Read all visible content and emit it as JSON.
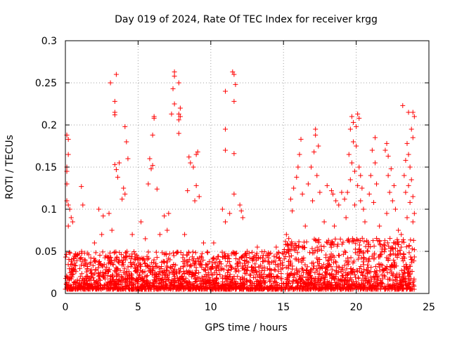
{
  "chart_data": {
    "type": "scatter",
    "title": "Day 019 of 2024, Rate Of TEC Index for receiver krgg",
    "xlabel": "GPS time / hours",
    "ylabel": "ROTI / TECUs",
    "xlim": [
      0,
      25
    ],
    "ylim": [
      0,
      0.3
    ],
    "x_ticks": [
      0,
      5,
      10,
      15,
      20,
      25
    ],
    "x_tick_labels": [
      "0",
      "5",
      "10",
      "15",
      "20",
      "25"
    ],
    "y_ticks": [
      0,
      0.05,
      0.1,
      0.15,
      0.2,
      0.25,
      0.3
    ],
    "y_tick_labels": [
      "0",
      "0.05",
      "0.1",
      "0.15",
      "0.2",
      "0.25",
      "0.3"
    ],
    "grid": true,
    "marker": "plus",
    "color": "#ff0000",
    "points": [
      [
        3.1,
        0.25
      ],
      [
        3.5,
        0.26
      ],
      [
        3.4,
        0.228
      ],
      [
        3.4,
        0.215
      ],
      [
        3.4,
        0.212
      ],
      [
        7.5,
        0.263
      ],
      [
        7.5,
        0.258
      ],
      [
        7.8,
        0.25
      ],
      [
        7.4,
        0.243
      ],
      [
        7.5,
        0.225
      ],
      [
        7.9,
        0.22
      ],
      [
        7.8,
        0.213
      ],
      [
        7.9,
        0.21
      ],
      [
        6.1,
        0.21
      ],
      [
        6.1,
        0.208
      ],
      [
        7.3,
        0.213
      ],
      [
        7.8,
        0.206
      ],
      [
        7.8,
        0.19
      ],
      [
        11.5,
        0.263
      ],
      [
        11.6,
        0.26
      ],
      [
        11.7,
        0.248
      ],
      [
        11.0,
        0.24
      ],
      [
        11.6,
        0.228
      ],
      [
        11.0,
        0.195
      ],
      [
        11.0,
        0.17
      ],
      [
        11.6,
        0.166
      ],
      [
        4.1,
        0.198
      ],
      [
        4.2,
        0.18
      ],
      [
        4.3,
        0.16
      ],
      [
        3.7,
        0.155
      ],
      [
        3.4,
        0.153
      ],
      [
        3.5,
        0.147
      ],
      [
        3.6,
        0.138
      ],
      [
        4.0,
        0.125
      ],
      [
        4.1,
        0.118
      ],
      [
        3.9,
        0.112
      ],
      [
        0.1,
        0.188
      ],
      [
        0.2,
        0.183
      ],
      [
        0.2,
        0.165
      ],
      [
        0.1,
        0.15
      ],
      [
        0.1,
        0.145
      ],
      [
        0.1,
        0.13
      ],
      [
        0.1,
        0.11
      ],
      [
        0.2,
        0.105
      ],
      [
        0.3,
        0.1
      ],
      [
        0.4,
        0.09
      ],
      [
        0.5,
        0.085
      ],
      [
        0.2,
        0.08
      ],
      [
        5.8,
        0.16
      ],
      [
        5.9,
        0.148
      ],
      [
        6.0,
        0.152
      ],
      [
        5.7,
        0.13
      ],
      [
        6.0,
        0.188
      ],
      [
        6.3,
        0.124
      ],
      [
        8.5,
        0.162
      ],
      [
        8.6,
        0.155
      ],
      [
        8.8,
        0.15
      ],
      [
        9.0,
        0.165
      ],
      [
        9.1,
        0.168
      ],
      [
        8.4,
        0.122
      ],
      [
        9.0,
        0.128
      ],
      [
        9.2,
        0.115
      ],
      [
        8.9,
        0.11
      ],
      [
        1.1,
        0.127
      ],
      [
        1.2,
        0.105
      ],
      [
        2.3,
        0.1
      ],
      [
        2.6,
        0.092
      ],
      [
        3.0,
        0.095
      ],
      [
        5.2,
        0.085
      ],
      [
        6.8,
        0.092
      ],
      [
        7.1,
        0.095
      ],
      [
        10.8,
        0.1
      ],
      [
        11.0,
        0.085
      ],
      [
        11.3,
        0.095
      ],
      [
        12.0,
        0.105
      ],
      [
        12.1,
        0.098
      ],
      [
        12.2,
        0.09
      ],
      [
        11.6,
        0.118
      ],
      [
        16.2,
        0.183
      ],
      [
        16.1,
        0.165
      ],
      [
        16.0,
        0.15
      ],
      [
        15.9,
        0.138
      ],
      [
        15.7,
        0.125
      ],
      [
        16.3,
        0.118
      ],
      [
        15.5,
        0.112
      ],
      [
        15.6,
        0.098
      ],
      [
        17.2,
        0.195
      ],
      [
        17.2,
        0.188
      ],
      [
        17.4,
        0.175
      ],
      [
        17.1,
        0.168
      ],
      [
        16.9,
        0.15
      ],
      [
        17.3,
        0.14
      ],
      [
        16.7,
        0.13
      ],
      [
        17.5,
        0.12
      ],
      [
        17.0,
        0.11
      ],
      [
        19.7,
        0.21
      ],
      [
        19.8,
        0.203
      ],
      [
        20.1,
        0.213
      ],
      [
        20.2,
        0.208
      ],
      [
        19.6,
        0.195
      ],
      [
        20.0,
        0.198
      ],
      [
        19.8,
        0.18
      ],
      [
        20.0,
        0.175
      ],
      [
        19.5,
        0.165
      ],
      [
        19.7,
        0.155
      ],
      [
        20.2,
        0.15
      ],
      [
        19.9,
        0.145
      ],
      [
        20.3,
        0.14
      ],
      [
        19.6,
        0.135
      ],
      [
        20.1,
        0.128
      ],
      [
        20.4,
        0.125
      ],
      [
        19.4,
        0.12
      ],
      [
        20.3,
        0.11
      ],
      [
        19.9,
        0.105
      ],
      [
        20.5,
        0.1
      ],
      [
        21.3,
        0.185
      ],
      [
        21.1,
        0.17
      ],
      [
        21.3,
        0.155
      ],
      [
        21.0,
        0.14
      ],
      [
        21.4,
        0.13
      ],
      [
        20.9,
        0.118
      ],
      [
        21.2,
        0.108
      ],
      [
        22.1,
        0.178
      ],
      [
        22.0,
        0.17
      ],
      [
        22.2,
        0.163
      ],
      [
        22.4,
        0.148
      ],
      [
        22.2,
        0.14
      ],
      [
        22.6,
        0.128
      ],
      [
        22.3,
        0.12
      ],
      [
        22.5,
        0.11
      ],
      [
        22.7,
        0.1
      ],
      [
        22.1,
        0.095
      ],
      [
        23.2,
        0.223
      ],
      [
        23.6,
        0.215
      ],
      [
        23.9,
        0.215
      ],
      [
        24.0,
        0.21
      ],
      [
        23.8,
        0.195
      ],
      [
        23.9,
        0.185
      ],
      [
        23.5,
        0.178
      ],
      [
        23.6,
        0.165
      ],
      [
        23.4,
        0.158
      ],
      [
        23.7,
        0.15
      ],
      [
        23.3,
        0.14
      ],
      [
        23.8,
        0.135
      ],
      [
        23.6,
        0.128
      ],
      [
        23.4,
        0.12
      ],
      [
        23.9,
        0.115
      ],
      [
        23.7,
        0.108
      ],
      [
        24.0,
        0.095
      ],
      [
        23.5,
        0.09
      ],
      [
        23.9,
        0.085
      ],
      [
        18.0,
        0.128
      ],
      [
        18.3,
        0.122
      ],
      [
        18.4,
        0.118
      ],
      [
        18.6,
        0.11
      ],
      [
        19.0,
        0.12
      ],
      [
        19.2,
        0.112
      ],
      [
        18.8,
        0.105
      ],
      [
        2.0,
        0.06
      ],
      [
        2.5,
        0.07
      ],
      [
        3.2,
        0.075
      ],
      [
        4.6,
        0.07
      ],
      [
        5.5,
        0.065
      ],
      [
        6.5,
        0.07
      ],
      [
        7.0,
        0.075
      ],
      [
        8.2,
        0.07
      ],
      [
        9.5,
        0.06
      ],
      [
        10.2,
        0.06
      ],
      [
        12.5,
        0.05
      ],
      [
        13.2,
        0.055
      ],
      [
        13.8,
        0.045
      ],
      [
        14.5,
        0.055
      ],
      [
        15.2,
        0.07
      ],
      [
        16.5,
        0.08
      ],
      [
        17.8,
        0.085
      ],
      [
        18.5,
        0.08
      ],
      [
        19.3,
        0.09
      ],
      [
        20.6,
        0.085
      ],
      [
        21.6,
        0.08
      ],
      [
        22.9,
        0.075
      ],
      [
        23.1,
        0.07
      ]
    ],
    "dense_band": {
      "x_range": [
        0,
        24
      ],
      "y_range": [
        0.005,
        0.05
      ]
    }
  }
}
